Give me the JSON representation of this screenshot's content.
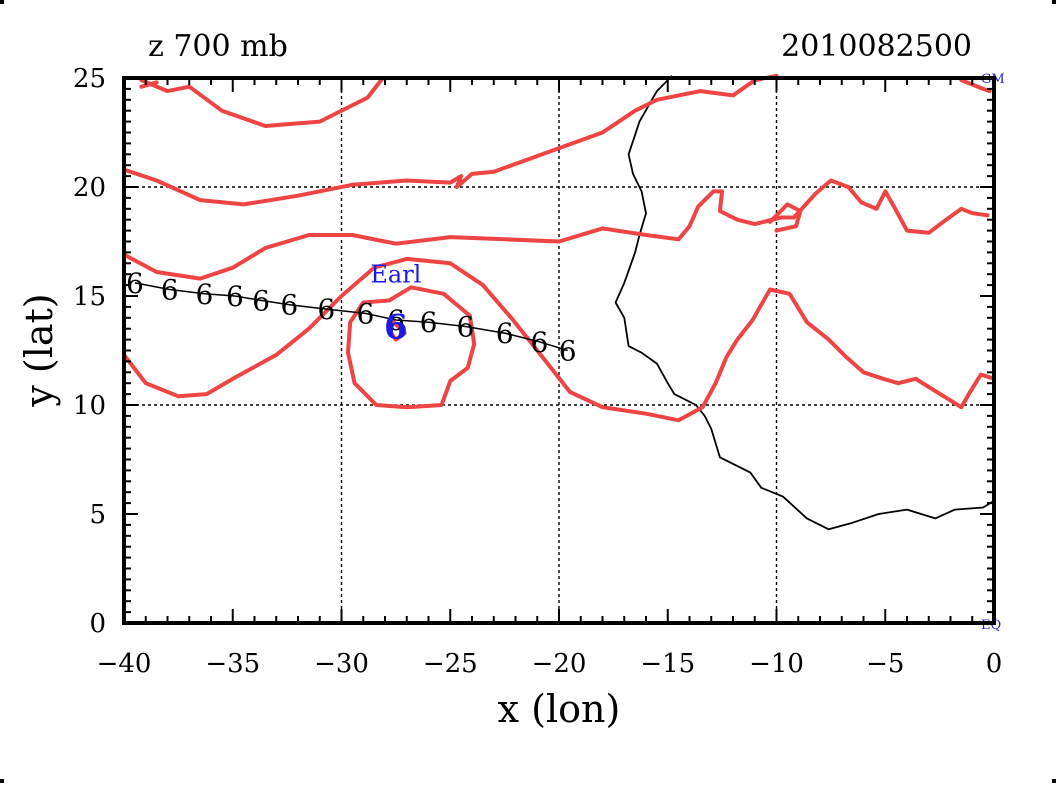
{
  "chart_data": {
    "type": "line",
    "title_left": "z 700 mb",
    "title_right": "2010082500",
    "xlabel": "x (lon)",
    "ylabel": "y (lat)",
    "xlim": [
      -40,
      0
    ],
    "ylim": [
      0,
      25
    ],
    "xticks": [
      -40,
      -35,
      -30,
      -25,
      -20,
      -15,
      -10,
      -5,
      0
    ],
    "xtick_labels": [
      "−40",
      "−35",
      "−30",
      "−25",
      "−20",
      "−15",
      "−10",
      "−5",
      "0"
    ],
    "yticks": [
      0,
      5,
      10,
      15,
      20,
      25
    ],
    "ytick_labels": [
      "0",
      "5",
      "10",
      "15",
      "20",
      "25"
    ],
    "gridlines_x": [
      -30,
      -20,
      -10
    ],
    "gridlines_y": [
      10,
      20
    ],
    "corner_labels": {
      "top_right": "GM",
      "bottom_right": "EQ"
    },
    "storm": {
      "name": "Earl",
      "marker": "6",
      "current_position": [
        -27.5,
        13.6
      ],
      "track_symbol": "6",
      "track_points": [
        [
          -39.5,
          15.6
        ],
        [
          -37.9,
          15.3
        ],
        [
          -36.3,
          15.1
        ],
        [
          -34.9,
          15.0
        ],
        [
          -33.7,
          14.8
        ],
        [
          -32.4,
          14.6
        ],
        [
          -30.7,
          14.4
        ],
        [
          -28.9,
          14.2
        ],
        [
          -27.5,
          13.9
        ],
        [
          -26.0,
          13.8
        ],
        [
          -24.3,
          13.6
        ],
        [
          -22.5,
          13.3
        ],
        [
          -20.9,
          12.9
        ],
        [
          -19.6,
          12.5
        ]
      ]
    },
    "contour_color": "#ee4444",
    "coast_color": "#000000",
    "contours": [
      [
        [
          -39.2,
          24.9
        ],
        [
          -38.0,
          24.4
        ],
        [
          -37.0,
          24.6
        ],
        [
          -35.5,
          23.5
        ],
        [
          -33.5,
          22.8
        ],
        [
          -31.0,
          23.0
        ],
        [
          -29.8,
          23.6
        ],
        [
          -28.8,
          24.1
        ],
        [
          -28.1,
          25.0
        ]
      ],
      [
        [
          -40.0,
          20.8
        ],
        [
          -38.5,
          20.3
        ],
        [
          -36.5,
          19.4
        ],
        [
          -34.5,
          19.2
        ],
        [
          -32.0,
          19.6
        ],
        [
          -29.5,
          20.1
        ],
        [
          -27.0,
          20.3
        ],
        [
          -25.0,
          20.2
        ],
        [
          -24.5,
          20.5
        ],
        [
          -24.7,
          20.0
        ],
        [
          -24.0,
          20.6
        ],
        [
          -23.0,
          20.7
        ],
        [
          -20.5,
          21.6
        ],
        [
          -18.0,
          22.5
        ],
        [
          -16.5,
          23.5
        ],
        [
          -15.5,
          24.0
        ],
        [
          -13.5,
          24.4
        ],
        [
          -12.0,
          24.2
        ],
        [
          -11.0,
          24.9
        ],
        [
          -10.0,
          25.1
        ]
      ],
      [
        [
          -40.0,
          16.9
        ],
        [
          -38.5,
          16.1
        ],
        [
          -36.5,
          15.8
        ],
        [
          -35.0,
          16.3
        ],
        [
          -33.5,
          17.2
        ],
        [
          -31.5,
          17.8
        ],
        [
          -29.5,
          17.8
        ],
        [
          -27.5,
          17.4
        ],
        [
          -25.0,
          17.7
        ],
        [
          -22.5,
          17.6
        ],
        [
          -20.0,
          17.5
        ],
        [
          -18.0,
          18.1
        ],
        [
          -16.0,
          17.8
        ],
        [
          -14.5,
          17.6
        ],
        [
          -14.0,
          18.2
        ],
        [
          -13.6,
          19.1
        ],
        [
          -12.9,
          19.8
        ],
        [
          -12.5,
          19.8
        ],
        [
          -12.6,
          18.9
        ],
        [
          -11.8,
          18.5
        ],
        [
          -11.0,
          18.3
        ],
        [
          -9.8,
          18.6
        ],
        [
          -9.2,
          18.6
        ],
        [
          -8.2,
          19.7
        ],
        [
          -7.5,
          20.3
        ],
        [
          -6.7,
          20.0
        ],
        [
          -6.1,
          19.3
        ],
        [
          -5.4,
          19.0
        ],
        [
          -5.0,
          19.8
        ],
        [
          -4.6,
          19.1
        ],
        [
          -4.0,
          18.0
        ],
        [
          -3.0,
          17.9
        ],
        [
          -2.2,
          18.5
        ],
        [
          -1.5,
          19.0
        ],
        [
          -1.0,
          18.8
        ],
        [
          -0.3,
          18.7
        ]
      ],
      [
        [
          -38.5,
          24.8
        ],
        [
          -39.2,
          24.6
        ]
      ],
      [
        [
          -10.0,
          18.0
        ],
        [
          -9.1,
          18.2
        ],
        [
          -8.9,
          18.9
        ],
        [
          -9.5,
          19.2
        ],
        [
          -10.3,
          18.4
        ]
      ],
      [
        [
          -1.5,
          24.9
        ],
        [
          -0.5,
          24.5
        ],
        [
          -0.2,
          24.4
        ]
      ],
      [
        [
          -40.0,
          12.3
        ],
        [
          -39.0,
          11.0
        ],
        [
          -37.5,
          10.4
        ],
        [
          -36.2,
          10.5
        ],
        [
          -35.0,
          11.2
        ],
        [
          -33.0,
          12.3
        ],
        [
          -31.5,
          13.5
        ],
        [
          -30.0,
          15.0
        ],
        [
          -28.5,
          16.3
        ],
        [
          -27.0,
          16.7
        ],
        [
          -25.0,
          16.5
        ],
        [
          -23.5,
          15.5
        ],
        [
          -22.2,
          14.0
        ],
        [
          -21.0,
          12.5
        ],
        [
          -19.5,
          10.6
        ],
        [
          -18.0,
          9.9
        ],
        [
          -16.0,
          9.6
        ],
        [
          -14.5,
          9.3
        ],
        [
          -13.4,
          9.9
        ],
        [
          -12.8,
          11.0
        ],
        [
          -12.3,
          12.2
        ],
        [
          -11.8,
          13.0
        ],
        [
          -11.1,
          13.9
        ],
        [
          -10.3,
          15.3
        ],
        [
          -9.4,
          15.1
        ],
        [
          -8.6,
          13.8
        ],
        [
          -7.6,
          13.0
        ],
        [
          -6.8,
          12.2
        ],
        [
          -6.0,
          11.5
        ],
        [
          -5.1,
          11.2
        ],
        [
          -4.4,
          11.0
        ],
        [
          -3.6,
          11.2
        ],
        [
          -2.8,
          10.7
        ],
        [
          -1.5,
          9.9
        ],
        [
          -1.1,
          10.6
        ],
        [
          -0.6,
          11.4
        ],
        [
          0.0,
          11.2
        ]
      ],
      [
        [
          -27.8,
          14.8
        ],
        [
          -26.8,
          15.4
        ],
        [
          -25.3,
          15.1
        ],
        [
          -24.1,
          14.1
        ],
        [
          -23.9,
          12.8
        ],
        [
          -24.2,
          11.7
        ],
        [
          -25.0,
          11.1
        ],
        [
          -25.4,
          10.0
        ],
        [
          -27.0,
          9.9
        ],
        [
          -28.4,
          10.0
        ],
        [
          -29.4,
          11.0
        ],
        [
          -29.7,
          12.4
        ],
        [
          -29.6,
          13.8
        ],
        [
          -29.0,
          14.7
        ],
        [
          -27.8,
          14.8
        ]
      ],
      [
        [
          -27.6,
          13.8
        ],
        [
          -27.1,
          13.3
        ],
        [
          -27.5,
          13.0
        ],
        [
          -27.8,
          13.4
        ],
        [
          -27.6,
          13.8
        ]
      ]
    ],
    "coastline": [
      [
        -14.8,
        25.1
      ],
      [
        -15.5,
        24.4
      ],
      [
        -16.3,
        23.0
      ],
      [
        -16.8,
        21.5
      ],
      [
        -16.6,
        20.6
      ],
      [
        -16.2,
        19.8
      ],
      [
        -16.0,
        18.8
      ],
      [
        -16.3,
        17.8
      ],
      [
        -16.5,
        17.0
      ],
      [
        -17.0,
        15.6
      ],
      [
        -17.4,
        14.7
      ],
      [
        -17.0,
        14.0
      ],
      [
        -16.8,
        12.7
      ],
      [
        -16.2,
        12.4
      ],
      [
        -15.5,
        11.9
      ],
      [
        -15.0,
        11.0
      ],
      [
        -14.7,
        10.5
      ],
      [
        -13.7,
        10.0
      ],
      [
        -13.3,
        9.5
      ],
      [
        -13.0,
        8.9
      ],
      [
        -12.6,
        7.6
      ],
      [
        -11.2,
        6.9
      ],
      [
        -10.7,
        6.2
      ],
      [
        -9.7,
        5.8
      ],
      [
        -8.6,
        4.8
      ],
      [
        -7.6,
        4.3
      ],
      [
        -6.5,
        4.6
      ],
      [
        -5.3,
        5.0
      ],
      [
        -4.0,
        5.2
      ],
      [
        -2.7,
        4.8
      ],
      [
        -1.8,
        5.2
      ],
      [
        -0.5,
        5.3
      ],
      [
        0.0,
        5.6
      ]
    ]
  }
}
